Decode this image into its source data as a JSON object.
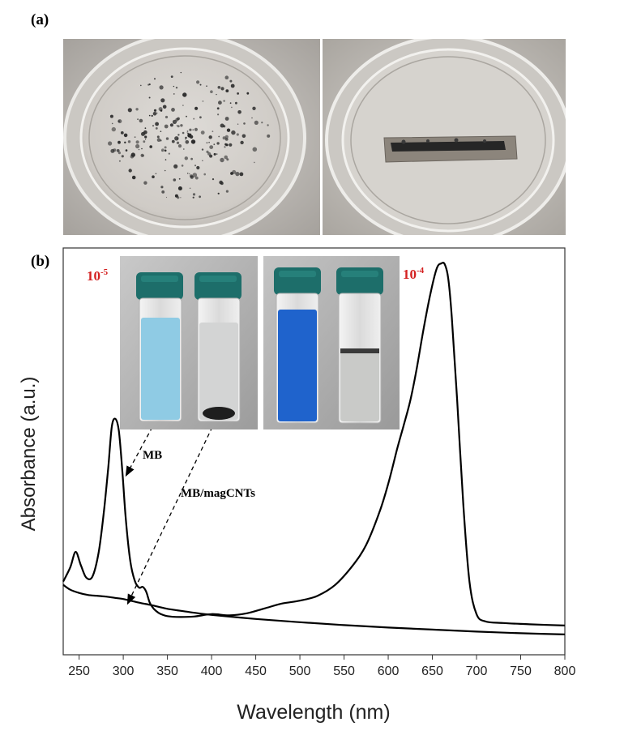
{
  "panel_a": {
    "label": "(a)"
  },
  "panel_b": {
    "label": "(b)",
    "conc_low": {
      "base": "10",
      "exp": "-5"
    },
    "conc_high": {
      "base": "10",
      "exp": "-4"
    },
    "annotations": [
      "MB",
      "MB/magCNTs"
    ]
  },
  "colors": {
    "label_red": "#d42020",
    "mb_light": "#8fcbe4",
    "mb_dark": "#1f63cc",
    "cap": "#1d6e6a",
    "curve": "#000000"
  },
  "chart_data": {
    "type": "line",
    "xlabel": "Wavelength (nm)",
    "ylabel": "Absorbance (a.u.)",
    "xlim": [
      232,
      800
    ],
    "ylim": [
      0,
      1
    ],
    "y_ticks_shown": false,
    "x_ticks": [
      250,
      300,
      350,
      400,
      450,
      500,
      550,
      600,
      650,
      700,
      750,
      800
    ],
    "series": [
      {
        "name": "MB",
        "x": [
          232,
          240,
          246,
          252,
          258,
          265,
          272,
          278,
          283,
          287,
          291,
          295,
          299,
          303,
          308,
          313,
          318,
          322,
          326,
          330,
          335,
          340,
          345,
          350,
          360,
          380,
          400,
          420,
          440,
          460,
          480,
          500,
          520,
          540,
          560,
          575,
          590,
          600,
          610,
          617,
          625,
          632,
          640,
          648,
          655,
          660,
          664,
          668,
          672,
          678,
          685,
          692,
          700,
          710,
          730,
          760,
          800
        ],
        "y": [
          0.18,
          0.215,
          0.253,
          0.22,
          0.19,
          0.192,
          0.25,
          0.35,
          0.46,
          0.56,
          0.58,
          0.55,
          0.45,
          0.33,
          0.23,
          0.182,
          0.165,
          0.167,
          0.155,
          0.128,
          0.112,
          0.103,
          0.098,
          0.095,
          0.093,
          0.094,
          0.1,
          0.097,
          0.102,
          0.114,
          0.126,
          0.133,
          0.145,
          0.172,
          0.22,
          0.27,
          0.35,
          0.42,
          0.505,
          0.56,
          0.625,
          0.7,
          0.8,
          0.89,
          0.95,
          0.962,
          0.96,
          0.925,
          0.83,
          0.63,
          0.37,
          0.18,
          0.1,
          0.082,
          0.078,
          0.075,
          0.072
        ]
      },
      {
        "name": "MB/magCNTs",
        "x": [
          232,
          240,
          250,
          260,
          270,
          280,
          290,
          300,
          310,
          320,
          330,
          340,
          350,
          375,
          400,
          450,
          500,
          550,
          600,
          650,
          700,
          750,
          800
        ],
        "y": [
          0.172,
          0.16,
          0.152,
          0.147,
          0.145,
          0.143,
          0.14,
          0.137,
          0.132,
          0.127,
          0.123,
          0.118,
          0.113,
          0.105,
          0.098,
          0.088,
          0.08,
          0.073,
          0.067,
          0.062,
          0.057,
          0.053,
          0.05
        ]
      }
    ]
  }
}
